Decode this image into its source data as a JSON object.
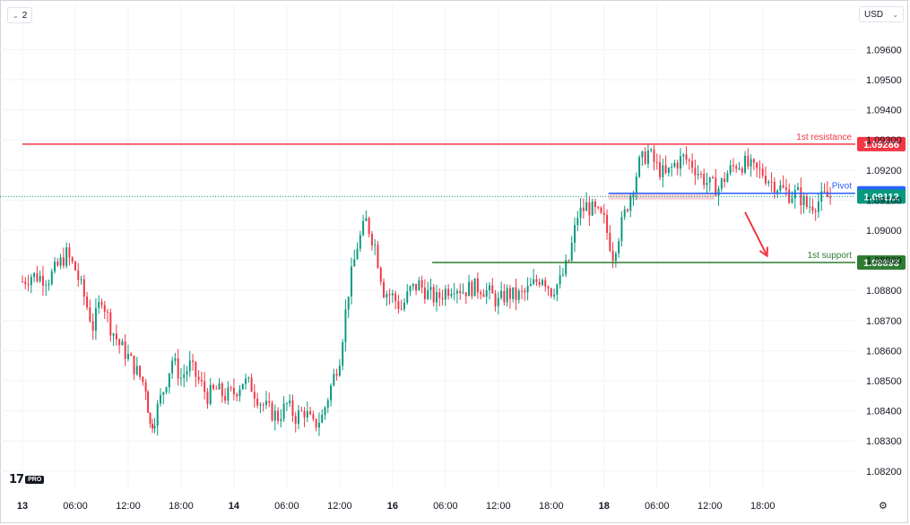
{
  "toolbar": {
    "interval_toggle": "2"
  },
  "currency": {
    "label": "USD"
  },
  "chart_data": {
    "type": "candlestick",
    "title": "",
    "y_axis": {
      "range": [
        1.0814,
        1.0975
      ],
      "ticks": [
        "1.09600",
        "1.09500",
        "1.09400",
        "1.09300",
        "1.09200",
        "1.09100",
        "1.09000",
        "1.08900",
        "1.08800",
        "1.08700",
        "1.08600",
        "1.08500",
        "1.08400",
        "1.08300",
        "1.08200"
      ],
      "tick_values": [
        1.096,
        1.095,
        1.094,
        1.093,
        1.092,
        1.091,
        1.09,
        1.089,
        1.088,
        1.087,
        1.086,
        1.085,
        1.084,
        1.083,
        1.082
      ]
    },
    "x_axis": {
      "ticks": [
        "13",
        "06:00",
        "12:00",
        "18:00",
        "14",
        "06:00",
        "12:00",
        "16",
        "06:00",
        "12:00",
        "18:00",
        "18",
        "06:00",
        "12:00",
        "18:00"
      ],
      "bold": [
        true,
        false,
        false,
        false,
        true,
        false,
        false,
        true,
        false,
        false,
        false,
        true,
        false,
        false,
        false
      ],
      "tick_slots": [
        0,
        6,
        12,
        18,
        24,
        30,
        36,
        42,
        48,
        54,
        60,
        66,
        72,
        78,
        84
      ],
      "slots_per_hour": 1
    },
    "levels": [
      {
        "name": "1st resistance",
        "label": "1st resistance",
        "value": 1.09286,
        "value_label": "1.09286",
        "color": "#f23645",
        "start_slot": 0
      },
      {
        "name": "Pivot",
        "label": "Pivot",
        "value": 1.09123,
        "value_label": "1.09123",
        "color": "#2962ff",
        "start_slot": 66.5
      },
      {
        "name": "1st support",
        "label": "1st support",
        "value": 1.08893,
        "value_label": "1.08893",
        "color": "#2e7d32",
        "start_slot": 46.5
      }
    ],
    "last_price": {
      "value": 1.09112,
      "value_label": "1.09112",
      "color": "#089981"
    },
    "pivot_zone": {
      "from": 1.09102,
      "to": 1.09123,
      "start_slot": 66.5,
      "end_slot": 78.5,
      "color": "#f8c8cc"
    },
    "projection_arrow": {
      "from_slot": 82,
      "from_value": 1.0906,
      "to_slot": 84.5,
      "to_value": 1.08915,
      "color": "#f23645"
    },
    "colors": {
      "up": "#089981",
      "down": "#f23645",
      "grid": "#f0f3fa",
      "axis_text": "#131722"
    },
    "anchors": [
      [
        0,
        1.0883
      ],
      [
        1,
        1.0885
      ],
      [
        3,
        1.0884
      ],
      [
        4,
        1.0888
      ],
      [
        5,
        1.0892
      ],
      [
        6,
        1.0887
      ],
      [
        7,
        1.0878
      ],
      [
        8,
        1.0868
      ],
      [
        9,
        1.0878
      ],
      [
        10,
        1.0868
      ],
      [
        11,
        1.0862
      ],
      [
        12,
        1.0858
      ],
      [
        13,
        1.0853
      ],
      [
        14,
        1.0848
      ],
      [
        14.5,
        1.0835
      ],
      [
        15,
        1.0838
      ],
      [
        16,
        1.0847
      ],
      [
        17,
        1.0857
      ],
      [
        18,
        1.0851
      ],
      [
        19,
        1.0855
      ],
      [
        20,
        1.085
      ],
      [
        21,
        1.0845
      ],
      [
        22,
        1.0847
      ],
      [
        23,
        1.0845
      ],
      [
        24,
        1.0846
      ],
      [
        25,
        1.085
      ],
      [
        26,
        1.0848
      ],
      [
        27,
        1.0843
      ],
      [
        28,
        1.084
      ],
      [
        29,
        1.0838
      ],
      [
        30,
        1.0842
      ],
      [
        31,
        1.0838
      ],
      [
        32,
        1.084
      ],
      [
        33,
        1.0835
      ],
      [
        34,
        1.0838
      ],
      [
        35,
        1.0848
      ],
      [
        36,
        1.0858
      ],
      [
        37,
        1.088
      ],
      [
        38,
        1.0895
      ],
      [
        39,
        1.0903
      ],
      [
        40,
        1.0895
      ],
      [
        41,
        1.088
      ],
      [
        42,
        1.0878
      ],
      [
        43,
        1.0874
      ],
      [
        44,
        1.088
      ],
      [
        45,
        1.0882
      ],
      [
        46,
        1.0879
      ],
      [
        47,
        1.0877
      ],
      [
        48,
        1.088
      ],
      [
        49,
        1.0882
      ],
      [
        50,
        1.088
      ],
      [
        51,
        1.0881
      ],
      [
        52,
        1.0881
      ],
      [
        53,
        1.0879
      ],
      [
        54,
        1.0876
      ],
      [
        55,
        1.0879
      ],
      [
        56,
        1.0878
      ],
      [
        57,
        1.0879
      ],
      [
        58,
        1.0882
      ],
      [
        59,
        1.0885
      ],
      [
        60,
        1.088
      ],
      [
        61,
        1.0883
      ],
      [
        62,
        1.089
      ],
      [
        63,
        1.0905
      ],
      [
        64,
        1.0908
      ],
      [
        65,
        1.0906
      ],
      [
        66,
        1.0903
      ],
      [
        67,
        1.0892
      ],
      [
        68,
        1.0902
      ],
      [
        69,
        1.0912
      ],
      [
        70,
        1.0922
      ],
      [
        71,
        1.0926
      ],
      [
        72,
        1.0921
      ],
      [
        73,
        1.0918
      ],
      [
        74,
        1.0922
      ],
      [
        75,
        1.0924
      ],
      [
        76,
        1.0922
      ],
      [
        77,
        1.0918
      ],
      [
        78,
        1.0915
      ],
      [
        79,
        1.0914
      ],
      [
        80,
        1.0919
      ],
      [
        81,
        1.0922
      ],
      [
        82,
        1.0922
      ],
      [
        83,
        1.092
      ],
      [
        84,
        1.0919
      ],
      [
        85,
        1.0916
      ],
      [
        86,
        1.0914
      ],
      [
        87,
        1.0912
      ],
      [
        88,
        1.0912
      ],
      [
        89,
        1.0908
      ],
      [
        90,
        1.0909
      ],
      [
        91,
        1.0911
      ],
      [
        92,
        1.0911
      ]
    ]
  }
}
